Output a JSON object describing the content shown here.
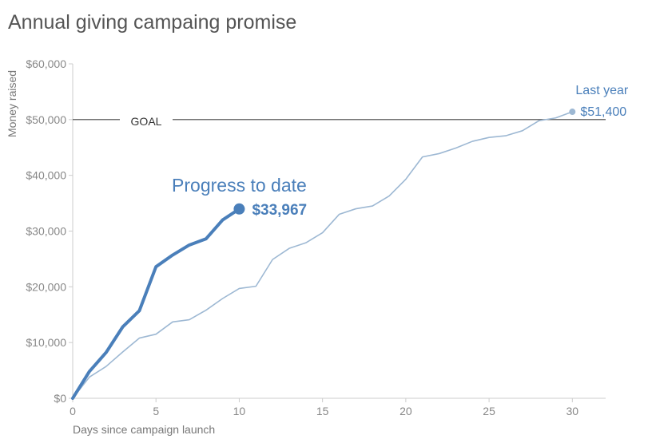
{
  "chart_data": {
    "type": "line",
    "title": "Annual giving campaing promise",
    "xlabel": "Days since campaign launch",
    "ylabel": "Money raised",
    "xlim": [
      0,
      32
    ],
    "ylim": [
      0,
      60000
    ],
    "x_ticks": [
      0,
      5,
      10,
      15,
      20,
      25,
      30
    ],
    "y_ticks": [
      0,
      10000,
      20000,
      30000,
      40000,
      50000,
      60000
    ],
    "x_tick_labels": [
      "0",
      "5",
      "10",
      "15",
      "20",
      "25",
      "30"
    ],
    "y_tick_labels": [
      "$0",
      "$10,000",
      "$20,000",
      "$30,000",
      "$40,000",
      "$50,000",
      "$60,000"
    ],
    "grid": false,
    "goal": {
      "value": 50000,
      "label": "GOAL"
    },
    "colors": {
      "current": "#4a7fba",
      "last_year": "#9db8d3",
      "goal": "#444444",
      "axis": "#cccccc"
    },
    "series": [
      {
        "key": "current",
        "x": [
          0,
          1,
          2,
          3,
          4,
          5,
          6,
          7,
          8,
          9,
          10
        ],
        "values": [
          0,
          4800,
          8200,
          12800,
          15700,
          23600,
          25700,
          27500,
          28600,
          32000,
          33967
        ],
        "annotation_title": "Progress to date",
        "annotation_value": "$33,967"
      },
      {
        "key": "last_year",
        "x": [
          0,
          1,
          2,
          3,
          4,
          5,
          6,
          7,
          8,
          9,
          10,
          11,
          12,
          13,
          14,
          15,
          16,
          17,
          18,
          19,
          20,
          21,
          22,
          23,
          24,
          25,
          26,
          27,
          28,
          29,
          30
        ],
        "values": [
          0,
          3800,
          5700,
          8300,
          10800,
          11500,
          13700,
          14100,
          15800,
          17900,
          19700,
          20100,
          24900,
          26900,
          27900,
          29700,
          33000,
          34000,
          34500,
          36300,
          39300,
          43300,
          43900,
          44900,
          46100,
          46800,
          47100,
          48000,
          49800,
          50300,
          51400
        ],
        "annotation_title": "Last year",
        "annotation_value": "$51,400"
      }
    ]
  }
}
